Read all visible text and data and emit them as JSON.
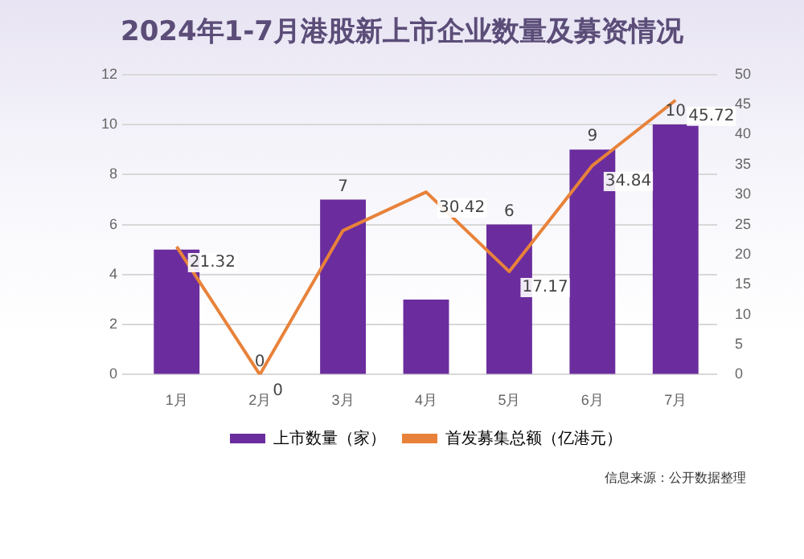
{
  "chart_data": {
    "type": "bar",
    "title": "2024年1-7月港股新上市企业数量及募资情况",
    "categories": [
      "1月",
      "2月",
      "3月",
      "4月",
      "5月",
      "6月",
      "7月"
    ],
    "series": [
      {
        "name": "上市数量（家）",
        "color": "#6b2d9e",
        "values": [
          5,
          0,
          7,
          3,
          6,
          9,
          10
        ],
        "value_labels": [
          null,
          "0",
          "7",
          null,
          "6",
          "9",
          "10"
        ]
      },
      {
        "name": "首发募集总额（亿港元）",
        "type": "line",
        "axis": "y2",
        "color": "#e8823a",
        "values": [
          21.32,
          0,
          24,
          30.42,
          17.17,
          34.84,
          45.72
        ],
        "value_labels": [
          "21.32",
          "0",
          null,
          "30.42",
          "17.17",
          "34.84",
          "45.72"
        ]
      }
    ],
    "ylim": [
      0,
      12
    ],
    "yticks": [
      0,
      2,
      4,
      6,
      8,
      10,
      12
    ],
    "y2lim": [
      0,
      50
    ],
    "y2ticks": [
      0,
      5,
      10,
      15,
      20,
      25,
      30,
      35,
      40,
      45,
      50
    ],
    "grid": "y",
    "legend": "bottom",
    "marker": "none",
    "line_style": "solid",
    "annotations": [
      "信息来源：公开数据整理"
    ]
  }
}
